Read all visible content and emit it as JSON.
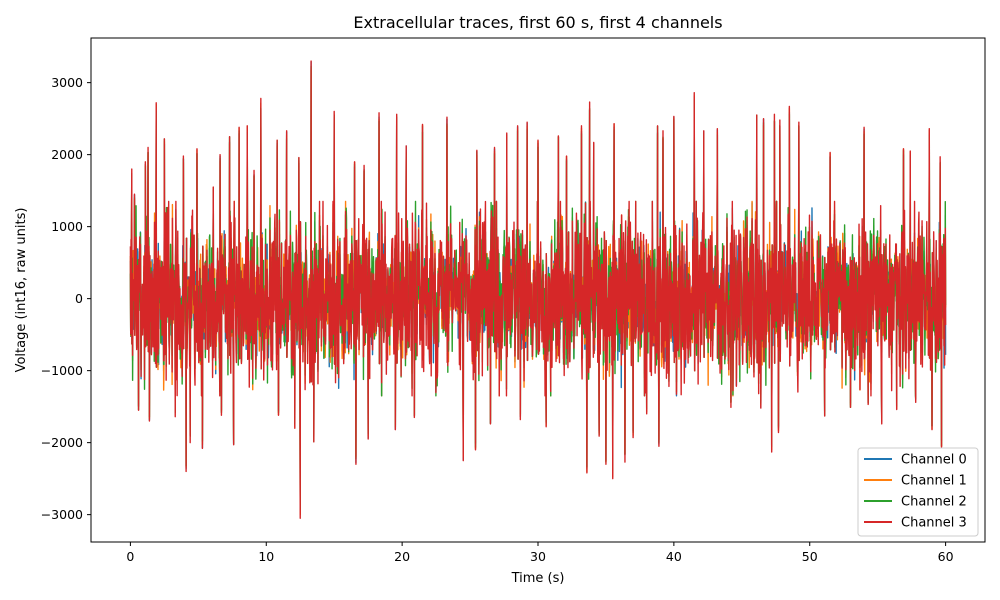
{
  "chart_data": {
    "type": "line",
    "title": "Extracellular traces, first 60 s, first 4 channels",
    "xlabel": "Time (s)",
    "ylabel": "Voltage (int16, raw units)",
    "xlim": [
      -2.9,
      62.9
    ],
    "ylim": [
      -3380,
      3620
    ],
    "xticks": [
      0,
      10,
      20,
      30,
      40,
      50,
      60
    ],
    "yticks": [
      -3000,
      -2000,
      -1000,
      0,
      1000,
      2000,
      3000
    ],
    "grid": false,
    "legend_position": "lower-right",
    "series": [
      {
        "name": "Channel 0",
        "color": "#1f77b4"
      },
      {
        "name": "Channel 1",
        "color": "#ff7f0e"
      },
      {
        "name": "Channel 2",
        "color": "#2ca02c"
      },
      {
        "name": "Channel 3",
        "color": "#d62728"
      }
    ],
    "noise_band": [
      -1000,
      1000
    ],
    "peaks": [
      {
        "x": 0.1,
        "y": 1800
      },
      {
        "x": 0.3,
        "y": 1450
      },
      {
        "x": 1.1,
        "y": 1900
      },
      {
        "x": 1.3,
        "y": 2100
      },
      {
        "x": 1.9,
        "y": 2720
      },
      {
        "x": 2.5,
        "y": 2220
      },
      {
        "x": 3.9,
        "y": 1980
      },
      {
        "x": 4.9,
        "y": 2080
      },
      {
        "x": 6.1,
        "y": 1550
      },
      {
        "x": 6.6,
        "y": 2000
      },
      {
        "x": 7.3,
        "y": 2250
      },
      {
        "x": 7.6,
        "y": 2500
      },
      {
        "x": 8.0,
        "y": 2380
      },
      {
        "x": 8.6,
        "y": 2400
      },
      {
        "x": 9.1,
        "y": 1780
      },
      {
        "x": 9.6,
        "y": 2780
      },
      {
        "x": 10.8,
        "y": 2200
      },
      {
        "x": 11.5,
        "y": 2330
      },
      {
        "x": 12.4,
        "y": 1960
      },
      {
        "x": 13.3,
        "y": 3300
      },
      {
        "x": 15.0,
        "y": 2600
      },
      {
        "x": 16.5,
        "y": 1900
      },
      {
        "x": 17.2,
        "y": 1850
      },
      {
        "x": 18.3,
        "y": 2580
      },
      {
        "x": 19.6,
        "y": 2560
      },
      {
        "x": 20.3,
        "y": 2120
      },
      {
        "x": 21.5,
        "y": 2420
      },
      {
        "x": 23.3,
        "y": 2520
      },
      {
        "x": 24.5,
        "y": 2330
      },
      {
        "x": 25.5,
        "y": 2060
      },
      {
        "x": 26.8,
        "y": 2100
      },
      {
        "x": 27.7,
        "y": 2300
      },
      {
        "x": 28.5,
        "y": 2400
      },
      {
        "x": 29.2,
        "y": 2450
      },
      {
        "x": 30.0,
        "y": 2200
      },
      {
        "x": 31.5,
        "y": 2260
      },
      {
        "x": 32.1,
        "y": 1980
      },
      {
        "x": 33.2,
        "y": 2400
      },
      {
        "x": 33.8,
        "y": 2730
      },
      {
        "x": 34.1,
        "y": 2170
      },
      {
        "x": 35.6,
        "y": 2430
      },
      {
        "x": 38.8,
        "y": 2400
      },
      {
        "x": 39.2,
        "y": 2330
      },
      {
        "x": 40.0,
        "y": 2530
      },
      {
        "x": 41.5,
        "y": 2860
      },
      {
        "x": 42.2,
        "y": 2330
      },
      {
        "x": 43.2,
        "y": 2360
      },
      {
        "x": 46.1,
        "y": 2550
      },
      {
        "x": 46.6,
        "y": 2500
      },
      {
        "x": 47.4,
        "y": 2560
      },
      {
        "x": 47.8,
        "y": 2480
      },
      {
        "x": 48.5,
        "y": 2670
      },
      {
        "x": 49.2,
        "y": 2450
      },
      {
        "x": 51.5,
        "y": 2030
      },
      {
        "x": 53.0,
        "y": 2590
      },
      {
        "x": 54.0,
        "y": 2380
      },
      {
        "x": 56.9,
        "y": 2080
      },
      {
        "x": 57.4,
        "y": 2050
      },
      {
        "x": 58.8,
        "y": 2360
      },
      {
        "x": 59.6,
        "y": 1970
      }
    ],
    "troughs": [
      {
        "x": 0.6,
        "y": -1550
      },
      {
        "x": 1.4,
        "y": -1700
      },
      {
        "x": 3.3,
        "y": -1640
      },
      {
        "x": 4.1,
        "y": -2400
      },
      {
        "x": 4.4,
        "y": -2000
      },
      {
        "x": 5.3,
        "y": -2080
      },
      {
        "x": 6.7,
        "y": -1620
      },
      {
        "x": 7.6,
        "y": -2030
      },
      {
        "x": 10.9,
        "y": -1620
      },
      {
        "x": 12.1,
        "y": -1800
      },
      {
        "x": 12.5,
        "y": -3050
      },
      {
        "x": 13.5,
        "y": -1990
      },
      {
        "x": 16.6,
        "y": -2300
      },
      {
        "x": 17.5,
        "y": -1950
      },
      {
        "x": 19.5,
        "y": -1820
      },
      {
        "x": 20.9,
        "y": -1650
      },
      {
        "x": 24.5,
        "y": -2250
      },
      {
        "x": 25.4,
        "y": -2100
      },
      {
        "x": 26.5,
        "y": -1740
      },
      {
        "x": 28.7,
        "y": -1680
      },
      {
        "x": 30.6,
        "y": -1780
      },
      {
        "x": 33.6,
        "y": -2420
      },
      {
        "x": 34.5,
        "y": -1910
      },
      {
        "x": 35.0,
        "y": -2300
      },
      {
        "x": 35.5,
        "y": -2500
      },
      {
        "x": 36.4,
        "y": -2270
      },
      {
        "x": 37.0,
        "y": -1930
      },
      {
        "x": 38.0,
        "y": -1600
      },
      {
        "x": 38.9,
        "y": -2050
      },
      {
        "x": 44.2,
        "y": -1510
      },
      {
        "x": 46.4,
        "y": -1520
      },
      {
        "x": 47.2,
        "y": -2130
      },
      {
        "x": 47.7,
        "y": -1860
      },
      {
        "x": 51.1,
        "y": -1630
      },
      {
        "x": 53.0,
        "y": -1510
      },
      {
        "x": 54.3,
        "y": -1470
      },
      {
        "x": 55.3,
        "y": -1740
      },
      {
        "x": 56.4,
        "y": -1540
      },
      {
        "x": 57.8,
        "y": -1440
      },
      {
        "x": 59.0,
        "y": -1820
      },
      {
        "x": 59.7,
        "y": -2060
      }
    ]
  }
}
